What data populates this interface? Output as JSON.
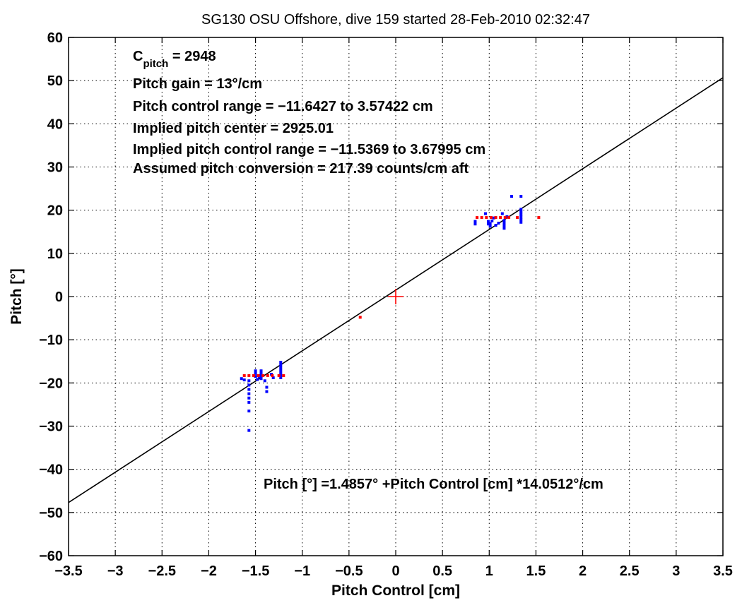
{
  "chart_data": {
    "type": "scatter",
    "title": "SG130 OSU Offshore, dive 159 started 28-Feb-2010 02:32:47",
    "xlabel": "Pitch Control [cm]",
    "ylabel": "Pitch [°]",
    "xlim": [
      -3.5,
      3.5
    ],
    "ylim": [
      -60,
      60
    ],
    "xticks": [
      -3.5,
      -3,
      -2.5,
      -2,
      -1.5,
      -1,
      -0.5,
      0,
      0.5,
      1,
      1.5,
      2,
      2.5,
      3,
      3.5
    ],
    "xtick_labels": [
      "−3.5",
      "−3",
      "−2.5",
      "−2",
      "−1.5",
      "−1",
      "−0.5",
      "0",
      "0.5",
      "1",
      "1.5",
      "2",
      "2.5",
      "3",
      "3.5"
    ],
    "yticks": [
      -60,
      -50,
      -40,
      -30,
      -20,
      -10,
      0,
      10,
      20,
      30,
      40,
      50,
      60
    ],
    "ytick_labels": [
      "−60",
      "−50",
      "−40",
      "−30",
      "−20",
      "−10",
      "0",
      "10",
      "20",
      "30",
      "40",
      "50",
      "60"
    ],
    "grid": true,
    "annotations": {
      "c_pitch_main": "C",
      "c_pitch_sub": "pitch",
      "c_pitch_rest": " = 2948",
      "pitch_gain": "Pitch gain = 13°/cm",
      "control_range": "Pitch control range = −11.6427 to 3.57422 cm",
      "implied_center": "Implied pitch center = 2925.01",
      "implied_range": "Implied pitch control range = −11.5369 to 3.67995 cm",
      "conversion": "Assumed pitch conversion = 217.39 counts/cm aft",
      "fit": "Pitch [°] =1.4857° +Pitch Control [cm] *14.0512°/cm"
    },
    "fit_line": {
      "intercept": 1.4857,
      "slope": 14.0512
    },
    "center_marker": {
      "x": 0,
      "y": 0
    },
    "series": [
      {
        "color": "#0000ff",
        "points": [
          [
            -1.65,
            -19.0
          ],
          [
            -1.62,
            -19.3
          ],
          [
            -1.57,
            -19.5
          ],
          [
            -1.57,
            -20.5
          ],
          [
            -1.57,
            -21.5
          ],
          [
            -1.57,
            -22.5
          ],
          [
            -1.57,
            -23.5
          ],
          [
            -1.57,
            -24.5
          ],
          [
            -1.57,
            -26.5
          ],
          [
            -1.57,
            -31.0
          ],
          [
            -1.5,
            -17.2
          ],
          [
            -1.5,
            -17.8
          ],
          [
            -1.5,
            -18.5
          ],
          [
            -1.48,
            -19.2
          ],
          [
            -1.46,
            -18.6
          ],
          [
            -1.44,
            -17.2
          ],
          [
            -1.44,
            -17.8
          ],
          [
            -1.44,
            -18.4
          ],
          [
            -1.44,
            -19.0
          ],
          [
            -1.4,
            -19.5
          ],
          [
            -1.38,
            -21.0
          ],
          [
            -1.38,
            -22.0
          ],
          [
            -1.33,
            -18.0
          ],
          [
            -1.31,
            -18.8
          ],
          [
            -1.23,
            -15.2
          ],
          [
            -1.23,
            -15.8
          ],
          [
            -1.23,
            -16.4
          ],
          [
            -1.23,
            -17.0
          ],
          [
            -1.23,
            -17.6
          ],
          [
            -1.23,
            -18.2
          ],
          [
            -1.23,
            -18.8
          ],
          [
            0.85,
            16.8
          ],
          [
            0.85,
            17.4
          ],
          [
            0.96,
            19.2
          ],
          [
            0.99,
            16.8
          ],
          [
            0.99,
            17.4
          ],
          [
            1.01,
            16.3
          ],
          [
            1.01,
            16.9
          ],
          [
            1.03,
            17.5
          ],
          [
            1.05,
            18.2
          ],
          [
            1.07,
            16.5
          ],
          [
            1.1,
            17.0
          ],
          [
            1.14,
            19.2
          ],
          [
            1.16,
            15.8
          ],
          [
            1.16,
            16.4
          ],
          [
            1.16,
            17.0
          ],
          [
            1.16,
            17.6
          ],
          [
            1.19,
            18.5
          ],
          [
            1.24,
            23.2
          ],
          [
            1.34,
            23.2
          ],
          [
            1.34,
            20.2
          ],
          [
            1.34,
            19.6
          ],
          [
            1.34,
            19.0
          ],
          [
            1.34,
            18.4
          ],
          [
            1.34,
            17.8
          ],
          [
            1.34,
            17.2
          ]
        ]
      },
      {
        "color": "#ff0000",
        "points": [
          [
            -1.62,
            -18.3
          ],
          [
            -1.57,
            -18.3
          ],
          [
            -1.52,
            -18.3
          ],
          [
            -1.47,
            -18.3
          ],
          [
            -1.42,
            -18.3
          ],
          [
            -1.37,
            -18.3
          ],
          [
            -1.32,
            -18.3
          ],
          [
            -1.25,
            -18.3
          ],
          [
            -1.2,
            -18.3
          ],
          [
            -0.38,
            -4.8
          ],
          [
            0.87,
            18.3
          ],
          [
            0.92,
            18.3
          ],
          [
            0.97,
            18.3
          ],
          [
            1.02,
            18.3
          ],
          [
            1.07,
            18.3
          ],
          [
            1.12,
            18.3
          ],
          [
            1.17,
            18.3
          ],
          [
            1.21,
            18.3
          ],
          [
            1.3,
            18.3
          ],
          [
            1.53,
            18.3
          ]
        ]
      }
    ]
  }
}
